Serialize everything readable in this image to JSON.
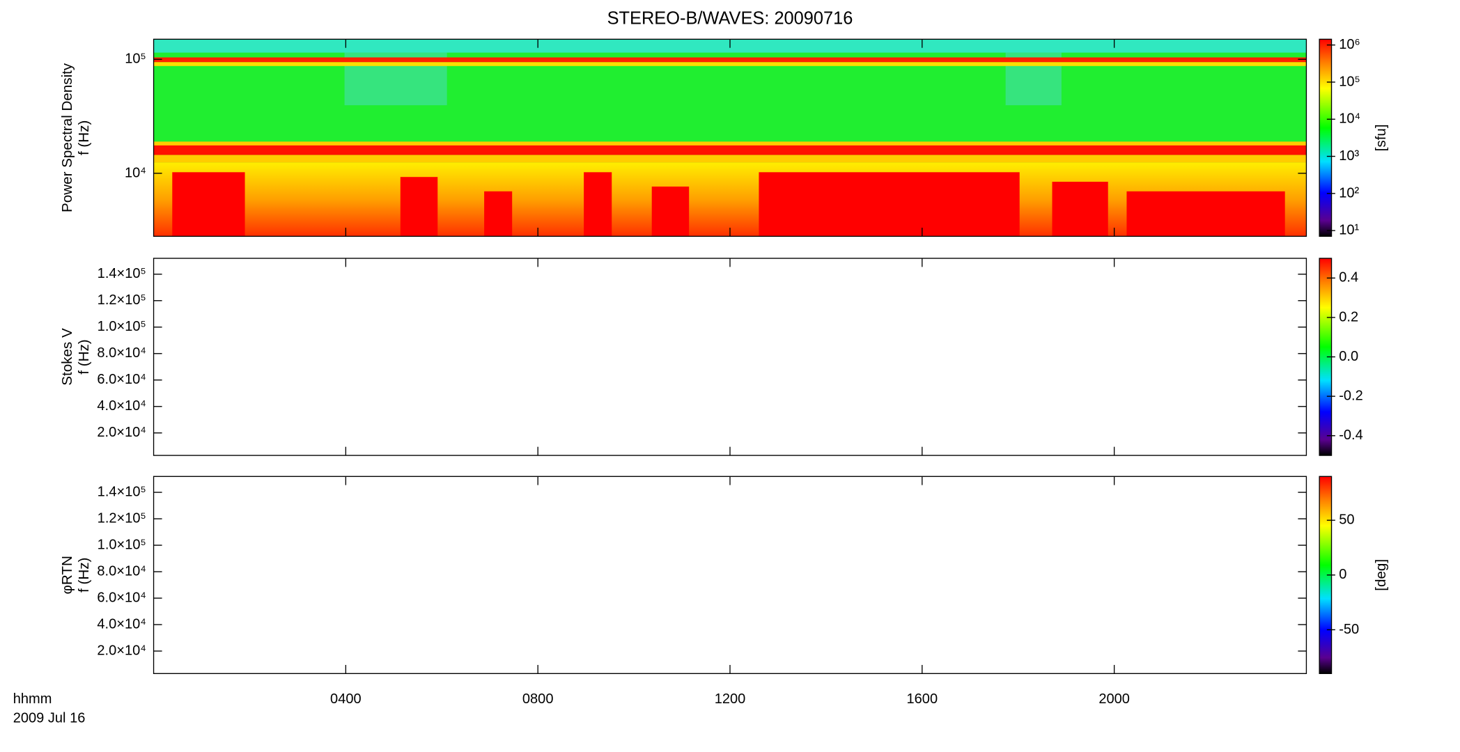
{
  "chart_data": [
    {
      "type": "spectrogram",
      "title": "STEREO-B/WAVES: 20090716",
      "ylabel": [
        "Power Spectral Density",
        "f (Hz)"
      ],
      "ylog": true,
      "ylim": [
        2800,
        150000
      ],
      "yticks": [
        {
          "value": 10000,
          "label": "10⁴"
        },
        {
          "value": 100000,
          "label": "10⁵"
        }
      ],
      "clog": true,
      "clim": [
        7,
        1430000
      ],
      "cticks": [
        {
          "value": 10,
          "label": "10¹"
        },
        {
          "value": 100,
          "label": "10²"
        },
        {
          "value": 1000,
          "label": "10³"
        },
        {
          "value": 10000,
          "label": "10⁴"
        },
        {
          "value": 100000,
          "label": "10⁵"
        },
        {
          "value": 1000000,
          "label": "10⁶"
        }
      ],
      "clabel": "[sfu]"
    },
    {
      "type": "spectrogram",
      "ylabel": [
        "Stokes V",
        "f (Hz)"
      ],
      "ylog": false,
      "ylim": [
        3000,
        152000
      ],
      "yticks": [
        {
          "value": 20000,
          "label": "2.0×10⁴"
        },
        {
          "value": 40000,
          "label": "4.0×10⁴"
        },
        {
          "value": 60000,
          "label": "6.0×10⁴"
        },
        {
          "value": 80000,
          "label": "8.0×10⁴"
        },
        {
          "value": 100000,
          "label": "1.0×10⁵"
        },
        {
          "value": 120000,
          "label": "1.2×10⁵"
        },
        {
          "value": 140000,
          "label": "1.4×10⁵"
        }
      ],
      "clog": false,
      "clim": [
        -0.5,
        0.5
      ],
      "cticks": [
        -0.4,
        -0.2,
        {
          "value": 0,
          "label": "0.0"
        },
        0.2,
        0.4
      ]
    },
    {
      "type": "spectrogram",
      "ylabel": [
        "φRTN",
        "f (Hz)"
      ],
      "ylog": false,
      "ylim": [
        3000,
        152000
      ],
      "yticks": [
        {
          "value": 20000,
          "label": "2.0×10⁴"
        },
        {
          "value": 40000,
          "label": "4.0×10⁴"
        },
        {
          "value": 60000,
          "label": "6.0×10⁴"
        },
        {
          "value": 80000,
          "label": "8.0×10⁴"
        },
        {
          "value": 100000,
          "label": "1.0×10⁵"
        },
        {
          "value": 120000,
          "label": "1.2×10⁵"
        },
        {
          "value": 140000,
          "label": "1.4×10⁵"
        }
      ],
      "clog": false,
      "clim": [
        -90,
        90
      ],
      "cticks": [
        -50,
        0,
        50
      ],
      "clabel": "[deg]",
      "xlabel": [
        "hhmm",
        "2009 Jul 16"
      ],
      "xlim": [
        0,
        24
      ],
      "xticks": [
        {
          "value": 4,
          "label": "0400"
        },
        {
          "value": 8,
          "label": "0800"
        },
        {
          "value": 12,
          "label": "1200"
        },
        {
          "value": 16,
          "label": "1600"
        },
        {
          "value": 20,
          "label": "2000"
        }
      ]
    }
  ]
}
